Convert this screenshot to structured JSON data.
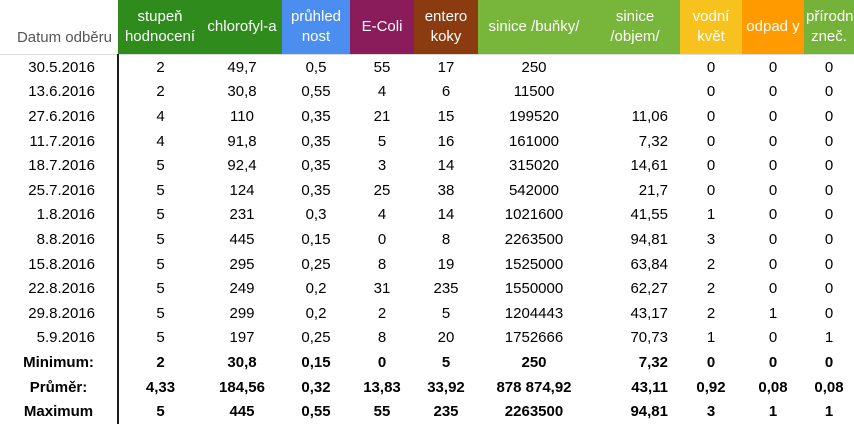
{
  "table": {
    "headers": [
      {
        "label": "Datum odběru",
        "name": "header-date"
      },
      {
        "label": "stupeň hodnocení",
        "name": "header-stupen"
      },
      {
        "label": "chlorofyl-a",
        "name": "header-chlorofyl"
      },
      {
        "label": "průhled nost",
        "name": "header-pruhlednost"
      },
      {
        "label": "E-Coli",
        "name": "header-ecoli"
      },
      {
        "label": "entero koky",
        "name": "header-enterokoky"
      },
      {
        "label": "sinice /buňky/",
        "name": "header-sinice-bunky"
      },
      {
        "label": "sinice /objem/",
        "name": "header-sinice-objem"
      },
      {
        "label": "vodní květ",
        "name": "header-vodni-kvet"
      },
      {
        "label": "odpad y",
        "name": "header-odpady"
      },
      {
        "label": "přírodní zneč.",
        "name": "header-prirodni-znec"
      }
    ],
    "header_colors": [
      "#ffffff",
      "#2e8b1c",
      "#2e8b1c",
      "#4b8ef0",
      "#8a1c5c",
      "#8a3c10",
      "#77b53b",
      "#77b53b",
      "#f7c21e",
      "#ff9a00",
      "#74b23a"
    ],
    "rows": [
      [
        "30.5.2016",
        "2",
        "49,7",
        "0,5",
        "55",
        "17",
        "250",
        "",
        "0",
        "0",
        "0"
      ],
      [
        "13.6.2016",
        "2",
        "30,8",
        "0,55",
        "4",
        "6",
        "11500",
        "",
        "0",
        "0",
        "0"
      ],
      [
        "27.6.2016",
        "4",
        "110",
        "0,35",
        "21",
        "15",
        "199520",
        "11,06",
        "0",
        "0",
        "0"
      ],
      [
        "11.7.2016",
        "4",
        "91,8",
        "0,35",
        "5",
        "16",
        "161000",
        "7,32",
        "0",
        "0",
        "0"
      ],
      [
        "18.7.2016",
        "5",
        "92,4",
        "0,35",
        "3",
        "14",
        "315020",
        "14,61",
        "0",
        "0",
        "0"
      ],
      [
        "25.7.2016",
        "5",
        "124",
        "0,35",
        "25",
        "38",
        "542000",
        "21,7",
        "0",
        "0",
        "0"
      ],
      [
        "1.8.2016",
        "5",
        "231",
        "0,3",
        "4",
        "14",
        "1021600",
        "41,55",
        "1",
        "0",
        "0"
      ],
      [
        "8.8.2016",
        "5",
        "445",
        "0,15",
        "0",
        "8",
        "2263500",
        "94,81",
        "3",
        "0",
        "0"
      ],
      [
        "15.8.2016",
        "5",
        "295",
        "0,25",
        "8",
        "19",
        "1525000",
        "63,84",
        "2",
        "0",
        "0"
      ],
      [
        "22.8.2016",
        "5",
        "249",
        "0,2",
        "31",
        "235",
        "1550000",
        "62,27",
        "2",
        "0",
        "0"
      ],
      [
        "29.8.2016",
        "5",
        "299",
        "0,2",
        "2",
        "5",
        "1204443",
        "43,17",
        "2",
        "1",
        "0"
      ],
      [
        "5.9.2016",
        "5",
        "197",
        "0,25",
        "8",
        "20",
        "1752666",
        "70,73",
        "1",
        "0",
        "1"
      ]
    ],
    "stats": [
      [
        "Minimum:",
        "2",
        "30,8",
        "0,15",
        "0",
        "5",
        "250",
        "7,32",
        "0",
        "0",
        "0"
      ],
      [
        "Průměr:",
        "4,33",
        "184,56",
        "0,32",
        "13,83",
        "33,92",
        "878 874,92",
        "43,11",
        "0,92",
        "0,08",
        "0,08"
      ],
      [
        "Maximum",
        "5",
        "445",
        "0,55",
        "55",
        "235",
        "2263500",
        "94,81",
        "3",
        "1",
        "1"
      ]
    ]
  }
}
